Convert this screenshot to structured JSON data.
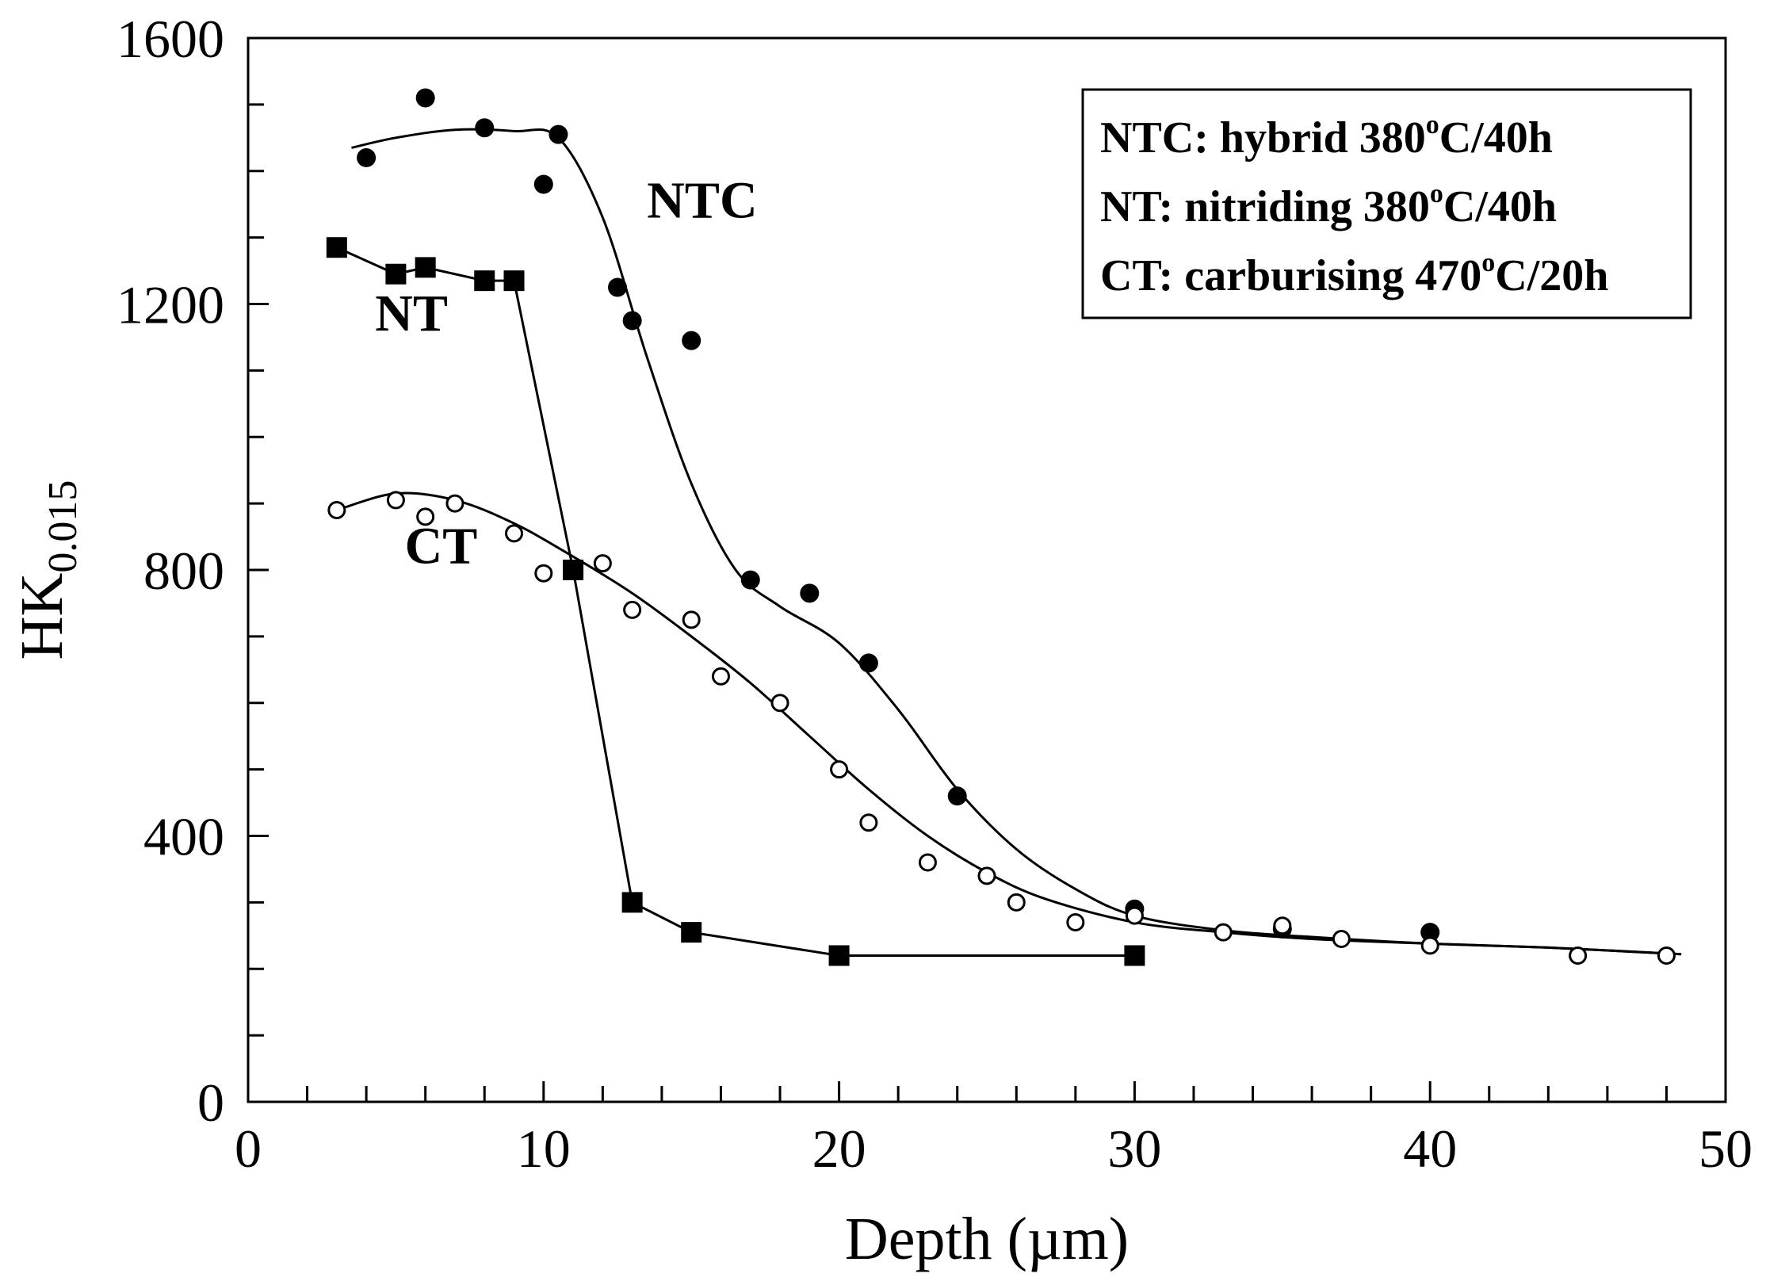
{
  "chart_data": {
    "type": "scatter",
    "xlabel": "Depth (µm)",
    "ylabel": "HK",
    "ylabel_subscript": "0.015",
    "xlim": [
      0,
      50
    ],
    "ylim": [
      0,
      1600
    ],
    "x_ticks": [
      "0",
      "10",
      "20",
      "30",
      "40",
      "50"
    ],
    "y_ticks": [
      "0",
      "400",
      "800",
      "1200",
      "1600"
    ],
    "x_minor_step": 2,
    "y_minor_step": 100,
    "legend": {
      "position": "top-right",
      "entries": [
        {
          "label": "NTC: hybrid 380",
          "sup": "o",
          "suffix": "C/40h"
        },
        {
          "label": "NT: nitriding 380",
          "sup": "o",
          "suffix": "C/40h"
        },
        {
          "label": "CT: carburising 470",
          "sup": "o",
          "suffix": "C/20h"
        }
      ]
    },
    "series": [
      {
        "name": "NTC",
        "marker": "filled-circle",
        "label_at": [
          13.5,
          1330
        ],
        "x": [
          4,
          6,
          8,
          10,
          10.5,
          12.5,
          13,
          15,
          17,
          19,
          21,
          24,
          30,
          35,
          40
        ],
        "y": [
          1420,
          1510,
          1465,
          1380,
          1455,
          1225,
          1175,
          1145,
          785,
          765,
          660,
          460,
          290,
          260,
          255
        ],
        "fit_x": [
          3.5,
          5,
          7,
          9,
          10.5,
          12,
          13.5,
          15,
          16.5,
          18,
          20,
          22,
          24,
          26,
          28,
          30,
          33,
          36,
          40,
          44,
          48.5
        ],
        "fit_y": [
          1435,
          1450,
          1462,
          1460,
          1450,
          1330,
          1120,
          930,
          800,
          745,
          690,
          590,
          470,
          380,
          320,
          280,
          258,
          248,
          238,
          232,
          222
        ]
      },
      {
        "name": "NT",
        "marker": "filled-square",
        "label_at": [
          4.3,
          1160
        ],
        "x": [
          3,
          5,
          6,
          8,
          9,
          11,
          13,
          15,
          20,
          30
        ],
        "y": [
          1285,
          1245,
          1255,
          1235,
          1235,
          800,
          300,
          255,
          220,
          220
        ]
      },
      {
        "name": "CT",
        "marker": "open-circle",
        "label_at": [
          5.3,
          810
        ],
        "x": [
          3,
          5,
          6,
          7,
          9,
          10,
          12,
          13,
          15,
          16,
          18,
          20,
          21,
          23,
          25,
          26,
          28,
          30,
          33,
          35,
          37,
          40,
          45,
          48
        ],
        "y": [
          890,
          905,
          880,
          900,
          855,
          795,
          810,
          740,
          725,
          640,
          600,
          500,
          420,
          360,
          340,
          300,
          270,
          280,
          255,
          265,
          245,
          235,
          220,
          220
        ],
        "fit_x": [
          3,
          5,
          7,
          9,
          11,
          13,
          15,
          17,
          19,
          21,
          23,
          25,
          27,
          30,
          33,
          36,
          40,
          44,
          48.5
        ],
        "fit_y": [
          890,
          915,
          905,
          870,
          820,
          765,
          700,
          630,
          550,
          470,
          400,
          345,
          305,
          270,
          255,
          245,
          238,
          232,
          222
        ]
      }
    ]
  }
}
